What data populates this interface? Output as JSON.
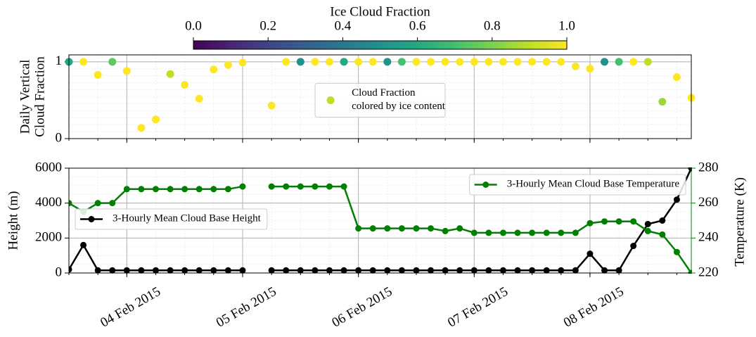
{
  "chart_data": [
    {
      "type": "scatter",
      "ylabel": [
        "Daily Vertical",
        "Cloud Fraction"
      ],
      "x": [
        "2015-02-03 12:00",
        "2015-02-03 15:00",
        "2015-02-03 18:00",
        "2015-02-03 21:00",
        "2015-02-04 00:00",
        "2015-02-04 03:00",
        "2015-02-04 06:00",
        "2015-02-04 09:00",
        "2015-02-04 12:00",
        "2015-02-04 15:00",
        "2015-02-04 18:00",
        "2015-02-04 21:00",
        "2015-02-05 00:00",
        "2015-02-05 03:00",
        "2015-02-05 06:00",
        "2015-02-05 09:00",
        "2015-02-05 12:00",
        "2015-02-05 15:00",
        "2015-02-05 18:00",
        "2015-02-05 21:00",
        "2015-02-06 00:00",
        "2015-02-06 03:00",
        "2015-02-06 06:00",
        "2015-02-06 09:00",
        "2015-02-06 12:00",
        "2015-02-06 15:00",
        "2015-02-06 18:00",
        "2015-02-06 21:00",
        "2015-02-07 00:00",
        "2015-02-07 03:00",
        "2015-02-07 06:00",
        "2015-02-07 09:00",
        "2015-02-07 12:00",
        "2015-02-07 15:00",
        "2015-02-07 18:00",
        "2015-02-07 21:00",
        "2015-02-08 00:00",
        "2015-02-08 03:00",
        "2015-02-08 06:00",
        "2015-02-08 09:00",
        "2015-02-08 12:00",
        "2015-02-08 15:00",
        "2015-02-08 18:00",
        "2015-02-08 21:00"
      ],
      "series": [
        {
          "name": [
            "Cloud Fraction",
            "colored by ice content"
          ],
          "values": [
            1.0,
            1.0,
            0.83,
            1.0,
            0.88,
            0.14,
            0.25,
            0.84,
            0.7,
            0.52,
            0.9,
            0.96,
            0.99,
            null,
            0.43,
            1.0,
            1.0,
            1.0,
            1.0,
            1.0,
            1.0,
            1.0,
            1.0,
            1.0,
            1.0,
            1.0,
            1.0,
            1.0,
            1.0,
            1.0,
            1.0,
            1.0,
            1.0,
            1.0,
            1.0,
            0.94,
            0.91,
            1.0,
            1.0,
            1.0,
            1.0,
            0.48,
            0.8,
            0.53
          ],
          "color_values": [
            0.6,
            1.0,
            1.0,
            0.75,
            1.0,
            1.0,
            1.0,
            0.9,
            1.0,
            1.0,
            1.0,
            1.0,
            1.0,
            null,
            1.0,
            1.0,
            0.5,
            1.0,
            1.0,
            0.6,
            1.0,
            1.0,
            0.5,
            0.7,
            1.0,
            1.0,
            1.0,
            1.0,
            1.0,
            1.0,
            1.0,
            1.0,
            1.0,
            1.0,
            1.0,
            1.0,
            1.0,
            0.5,
            0.7,
            1.0,
            0.9,
            0.85,
            1.0,
            1.0
          ]
        }
      ],
      "legend": "center",
      "ylim": [
        0,
        1.09
      ],
      "yticks": [
        0,
        1
      ],
      "xlim": [
        "2015-02-03 12:00",
        "2015-02-08 21:00"
      ],
      "xticks": [
        "2015-02-04 00:00",
        "2015-02-05 00:00",
        "2015-02-06 00:00",
        "2015-02-07 00:00",
        "2015-02-08 00:00"
      ],
      "grid": true,
      "minor_grid": true,
      "colorbar": {
        "label": "Ice Cloud Fraction",
        "colormap": "viridis",
        "lim": [
          0,
          1
        ],
        "ticks": [
          {
            "value": 0,
            "label": "0.0"
          },
          {
            "value": 0.2,
            "label": "0.2"
          },
          {
            "value": 0.4,
            "label": "0.4"
          },
          {
            "value": 0.6,
            "label": "0.6"
          },
          {
            "value": 0.8,
            "label": "0.8"
          },
          {
            "value": 1,
            "label": "1.0"
          }
        ]
      }
    },
    {
      "type": "line",
      "ylabel": "Height (m)",
      "y2label": "Temperature (K)",
      "x": [
        "2015-02-03 12:00",
        "2015-02-03 15:00",
        "2015-02-03 18:00",
        "2015-02-03 21:00",
        "2015-02-04 00:00",
        "2015-02-04 03:00",
        "2015-02-04 06:00",
        "2015-02-04 09:00",
        "2015-02-04 12:00",
        "2015-02-04 15:00",
        "2015-02-04 18:00",
        "2015-02-04 21:00",
        "2015-02-05 00:00",
        "2015-02-05 03:00",
        "2015-02-05 06:00",
        "2015-02-05 09:00",
        "2015-02-05 12:00",
        "2015-02-05 15:00",
        "2015-02-05 18:00",
        "2015-02-05 21:00",
        "2015-02-06 00:00",
        "2015-02-06 03:00",
        "2015-02-06 06:00",
        "2015-02-06 09:00",
        "2015-02-06 12:00",
        "2015-02-06 15:00",
        "2015-02-06 18:00",
        "2015-02-06 21:00",
        "2015-02-07 00:00",
        "2015-02-07 03:00",
        "2015-02-07 06:00",
        "2015-02-07 09:00",
        "2015-02-07 12:00",
        "2015-02-07 15:00",
        "2015-02-07 18:00",
        "2015-02-07 21:00",
        "2015-02-08 00:00",
        "2015-02-08 03:00",
        "2015-02-08 06:00",
        "2015-02-08 09:00",
        "2015-02-08 12:00",
        "2015-02-08 15:00",
        "2015-02-08 18:00",
        "2015-02-08 21:00"
      ],
      "series": [
        {
          "name": "3-Hourly Mean Cloud Base Height",
          "color": "#000000",
          "legend": "center left",
          "values": [
            200,
            1600,
            150,
            150,
            150,
            150,
            150,
            150,
            150,
            150,
            150,
            150,
            150,
            null,
            150,
            150,
            150,
            150,
            150,
            150,
            150,
            150,
            150,
            150,
            150,
            150,
            150,
            150,
            150,
            150,
            150,
            150,
            150,
            150,
            150,
            150,
            1100,
            150,
            150,
            1550,
            2800,
            3000,
            4200,
            6000
          ]
        },
        {
          "name": "3-Hourly Mean Cloud Base Temperature",
          "color": "#008000",
          "axis": "y2",
          "legend": "upper right",
          "values": [
            260,
            255,
            260,
            260,
            268,
            268,
            268,
            268,
            268,
            268,
            268,
            268,
            269.5,
            null,
            269.5,
            269.5,
            269.5,
            269.5,
            269.5,
            269.5,
            245.5,
            245.5,
            245.5,
            245.5,
            245.5,
            245.5,
            244,
            245.5,
            243,
            243,
            243,
            243,
            243,
            243,
            243,
            243,
            248.5,
            249.5,
            249.5,
            249.5,
            244,
            242,
            232,
            220
          ]
        }
      ],
      "ylim": [
        0,
        6000
      ],
      "yticks": [
        0,
        2000,
        4000,
        6000
      ],
      "y2lim": [
        220,
        280
      ],
      "y2ticks": [
        220,
        240,
        260,
        280
      ],
      "xlim": [
        "2015-02-03 12:00",
        "2015-02-08 21:00"
      ],
      "xticks": [
        {
          "value": "2015-02-04 00:00",
          "label": "04 Feb 2015"
        },
        {
          "value": "2015-02-05 00:00",
          "label": "05 Feb 2015"
        },
        {
          "value": "2015-02-06 00:00",
          "label": "06 Feb 2015"
        },
        {
          "value": "2015-02-07 00:00",
          "label": "07 Feb 2015"
        },
        {
          "value": "2015-02-08 00:00",
          "label": "08 Feb 2015"
        }
      ],
      "grid": true,
      "minor_grid": true
    }
  ]
}
